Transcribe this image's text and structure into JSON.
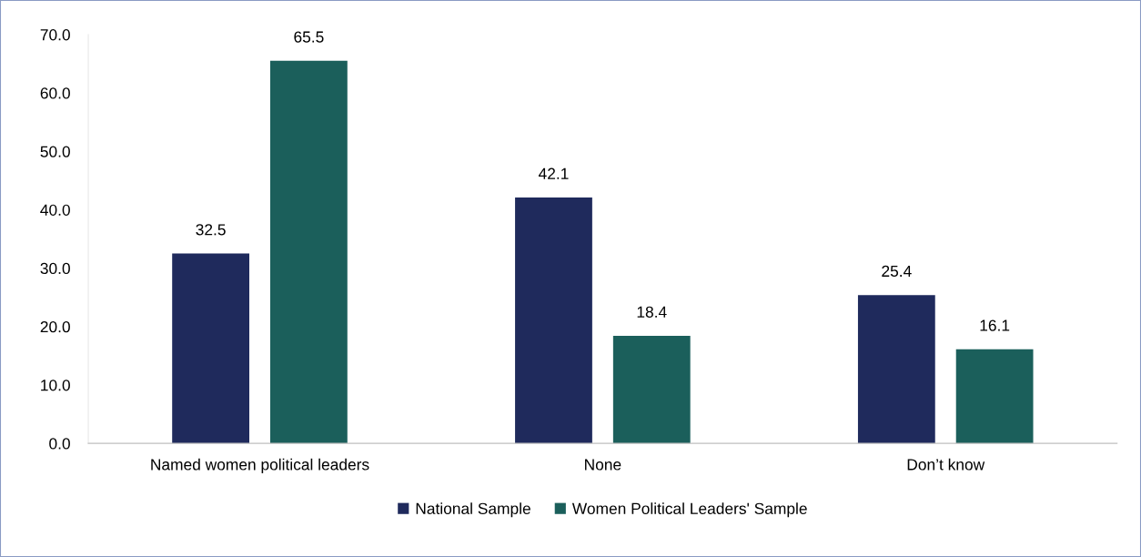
{
  "chart_data": {
    "type": "bar",
    "categories": [
      "Named women political leaders",
      "None",
      "Don’t know"
    ],
    "series": [
      {
        "name": "National Sample",
        "color": "#1f2a5c",
        "values": [
          32.5,
          42.1,
          25.4
        ]
      },
      {
        "name": "Women Political Leaders' Sample",
        "color": "#1b5f5b",
        "values": [
          65.5,
          18.4,
          16.1
        ]
      }
    ],
    "ylim": [
      0,
      70
    ],
    "yticks": [
      {
        "value": 0,
        "label": "0.0"
      },
      {
        "value": 10,
        "label": "10.0"
      },
      {
        "value": 20,
        "label": "20.0"
      },
      {
        "value": 30,
        "label": "30.0"
      },
      {
        "value": 40,
        "label": "40.0"
      },
      {
        "value": 50,
        "label": "50.0"
      },
      {
        "value": 60,
        "label": "60.0"
      },
      {
        "value": 70,
        "label": "70.0"
      }
    ],
    "data_labels": true,
    "grid": false,
    "legend": "bottom"
  }
}
